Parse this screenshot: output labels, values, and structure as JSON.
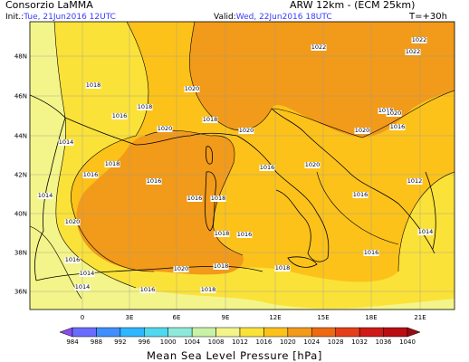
{
  "header": {
    "org": "Consorzio LaMMA",
    "model": "ARW 12km - (ECM 25km)",
    "init_label": "Init.:",
    "init_value": "Tue, 21Jun2016  12UTC",
    "valid_label": "Valid:",
    "valid_value": "Wed, 22Jun2016  18UTC",
    "forecast_step": "T=+30h"
  },
  "map": {
    "lat_ticks": [
      "48N",
      "46N",
      "44N",
      "42N",
      "40N",
      "38N",
      "36N"
    ],
    "lon_ticks": [
      "0",
      "3E",
      "6E",
      "9E",
      "12E",
      "15E",
      "18E",
      "21E"
    ],
    "isobar_labels": [
      {
        "text": "1022"
      },
      {
        "text": "1022"
      },
      {
        "text": "1022"
      },
      {
        "text": "1020"
      },
      {
        "text": "1018"
      },
      {
        "text": "1018"
      },
      {
        "text": "1020"
      },
      {
        "text": "1020"
      },
      {
        "text": "1018"
      },
      {
        "text": "1016"
      },
      {
        "text": "1014"
      },
      {
        "text": "1018"
      },
      {
        "text": "1016"
      },
      {
        "text": "1014"
      },
      {
        "text": "1016"
      },
      {
        "text": "1016"
      },
      {
        "text": "1018"
      },
      {
        "text": "1016"
      },
      {
        "text": "1020"
      },
      {
        "text": "1020"
      },
      {
        "text": "1018"
      },
      {
        "text": "1016"
      },
      {
        "text": "1020"
      },
      {
        "text": "1020"
      },
      {
        "text": "1018"
      },
      {
        "text": "1016"
      },
      {
        "text": "1014"
      },
      {
        "text": "1016"
      },
      {
        "text": "1012"
      },
      {
        "text": "1014"
      },
      {
        "text": "1018"
      },
      {
        "text": "1016"
      },
      {
        "text": "1018"
      },
      {
        "text": "1014"
      },
      {
        "text": "1020"
      },
      {
        "text": "1018"
      },
      {
        "text": "1016"
      },
      {
        "text": "1016"
      }
    ],
    "colors": {
      "p1024": "#f29a19",
      "p1020": "#fcc21a",
      "p1016": "#fbe239",
      "p1012": "#f3f58a",
      "land_line": "#000000"
    }
  },
  "colorbar": {
    "levels": [
      "984",
      "988",
      "992",
      "996",
      "1000",
      "1004",
      "1008",
      "1012",
      "1016",
      "1020",
      "1024",
      "1028",
      "1032",
      "1036",
      "1040"
    ],
    "colors": [
      "#8a4cf0",
      "#6a6cff",
      "#3f8fff",
      "#2eb6ff",
      "#4fd8ee",
      "#8deadb",
      "#c8f3a7",
      "#f3f58a",
      "#fbe239",
      "#fcc21a",
      "#f29a19",
      "#ee6a12",
      "#e3401a",
      "#cf1a17",
      "#b80e12",
      "#9c0a0e"
    ]
  },
  "footer": {
    "title": "Mean Sea Level Pressure [hPa]"
  }
}
